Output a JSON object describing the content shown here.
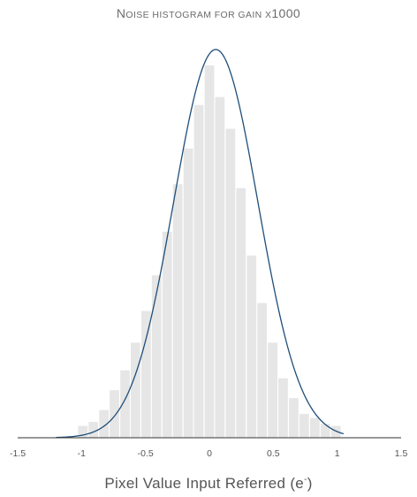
{
  "chart_data": {
    "type": "bar",
    "title_cap": "N",
    "title_rest": "OISE HISTOGRAM FOR GAIN X",
    "title_num": "1000",
    "xlabel_main": "Pixel Value Input Referred (e",
    "xlabel_sup": "-",
    "xlabel_close": ")",
    "xlim": [
      -1.5,
      1.5
    ],
    "ylim": [
      0,
      1.0
    ],
    "xticks": [
      "-1.5",
      "-1",
      "-0.5",
      "0",
      "0.5",
      "1",
      "1.5"
    ],
    "xtick_values": [
      -1.5,
      -1,
      -0.5,
      0,
      0.5,
      1,
      1.5
    ],
    "bar_width": 0.0825,
    "bin_centers": [
      -0.99,
      -0.908,
      -0.825,
      -0.743,
      -0.66,
      -0.578,
      -0.495,
      -0.413,
      -0.33,
      -0.248,
      -0.165,
      -0.083,
      0.0,
      0.082,
      0.165,
      0.247,
      0.33,
      0.412,
      0.495,
      0.577,
      0.66,
      0.742,
      0.825,
      0.907,
      0.99
    ],
    "values": [
      0.03,
      0.04,
      0.07,
      0.12,
      0.17,
      0.24,
      0.32,
      0.41,
      0.52,
      0.64,
      0.73,
      0.84,
      0.94,
      0.86,
      0.78,
      0.63,
      0.46,
      0.34,
      0.24,
      0.15,
      0.1,
      0.06,
      0.05,
      0.035,
      0.03
    ],
    "fit_curve": {
      "mean": 0.05,
      "sigma": 0.33,
      "peak": 0.98,
      "x_range": [
        -1.2,
        1.05
      ]
    },
    "grid": false,
    "colors": {
      "bar": "#e6e6e6",
      "curve": "#1f4e79",
      "axis": "#333333",
      "text": "#555555"
    }
  }
}
